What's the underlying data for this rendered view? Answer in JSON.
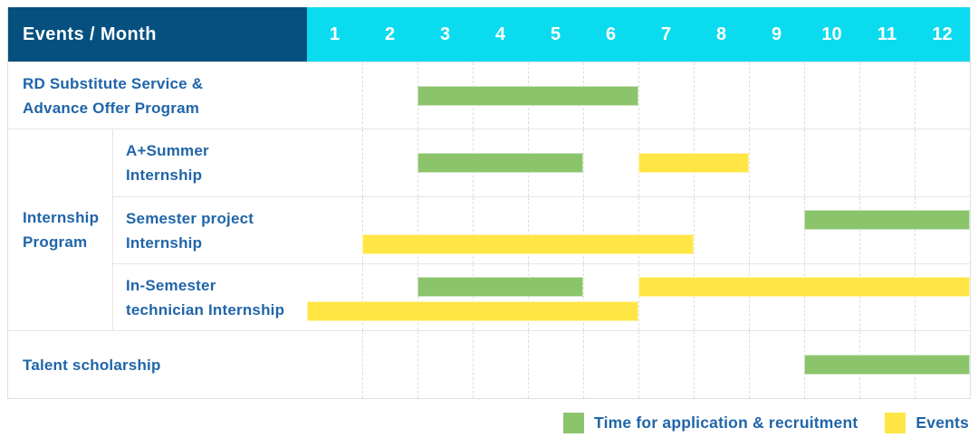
{
  "colors": {
    "header_label_bg": "#05507F",
    "header_months_bg": "#0BDBEF",
    "label_text": "#2065A9",
    "application_green": "#8BC46B",
    "events_yellow": "#FFE644",
    "grid_line": "#DEDEDE"
  },
  "header": {
    "title": "Events / Month",
    "months": [
      "1",
      "2",
      "3",
      "4",
      "5",
      "6",
      "7",
      "8",
      "9",
      "10",
      "11",
      "12"
    ]
  },
  "chart_data": {
    "type": "table",
    "subtype": "gantt-timeline",
    "x_unit": "month",
    "x_range": [
      1,
      12
    ],
    "grid": true,
    "group": {
      "label": "Internship Program",
      "label_lines": [
        "Internship",
        "Program"
      ],
      "member_rows": [
        1,
        2,
        3
      ]
    },
    "rows": [
      {
        "label": "RD Substitute Service & Advance Offer Program",
        "label_lines": [
          "RD Substitute Service &",
          "Advance Offer Program"
        ],
        "group": null,
        "bars": [
          {
            "key": "application",
            "start_month": 3,
            "end_month": 6,
            "line": 0
          }
        ]
      },
      {
        "label": "A+Summer Internship",
        "label_lines": [
          "A+Summer",
          "Internship"
        ],
        "group": "Internship Program",
        "bars": [
          {
            "key": "application",
            "start_month": 3,
            "end_month": 5,
            "line": 0
          },
          {
            "key": "event",
            "start_month": 7,
            "end_month": 8,
            "line": 0
          }
        ]
      },
      {
        "label": "Semester project Internship",
        "label_lines": [
          "Semester project",
          "Internship"
        ],
        "group": "Internship Program",
        "bars": [
          {
            "key": "application",
            "start_month": 10,
            "end_month": 12,
            "line": 0
          },
          {
            "key": "event",
            "start_month": 2,
            "end_month": 7,
            "line": 1
          }
        ]
      },
      {
        "label": "In-Semester technician Internship",
        "label_lines": [
          "In-Semester",
          "technician Internship"
        ],
        "group": "Internship Program",
        "bars": [
          {
            "key": "application",
            "start_month": 3,
            "end_month": 5,
            "line": 0
          },
          {
            "key": "event",
            "start_month": 7,
            "end_month": 12,
            "line": 0
          },
          {
            "key": "event",
            "start_month": 1,
            "end_month": 6,
            "line": 1
          }
        ]
      },
      {
        "label": "Talent scholarship",
        "label_lines": [
          "Talent scholarship"
        ],
        "group": null,
        "bars": [
          {
            "key": "application",
            "start_month": 10,
            "end_month": 12,
            "line": 0
          }
        ]
      }
    ],
    "legend": [
      {
        "key": "application",
        "label": "Time for application & recruitment",
        "color": "#8BC46B"
      },
      {
        "key": "event",
        "label": "Events",
        "color": "#FFE644"
      }
    ]
  }
}
